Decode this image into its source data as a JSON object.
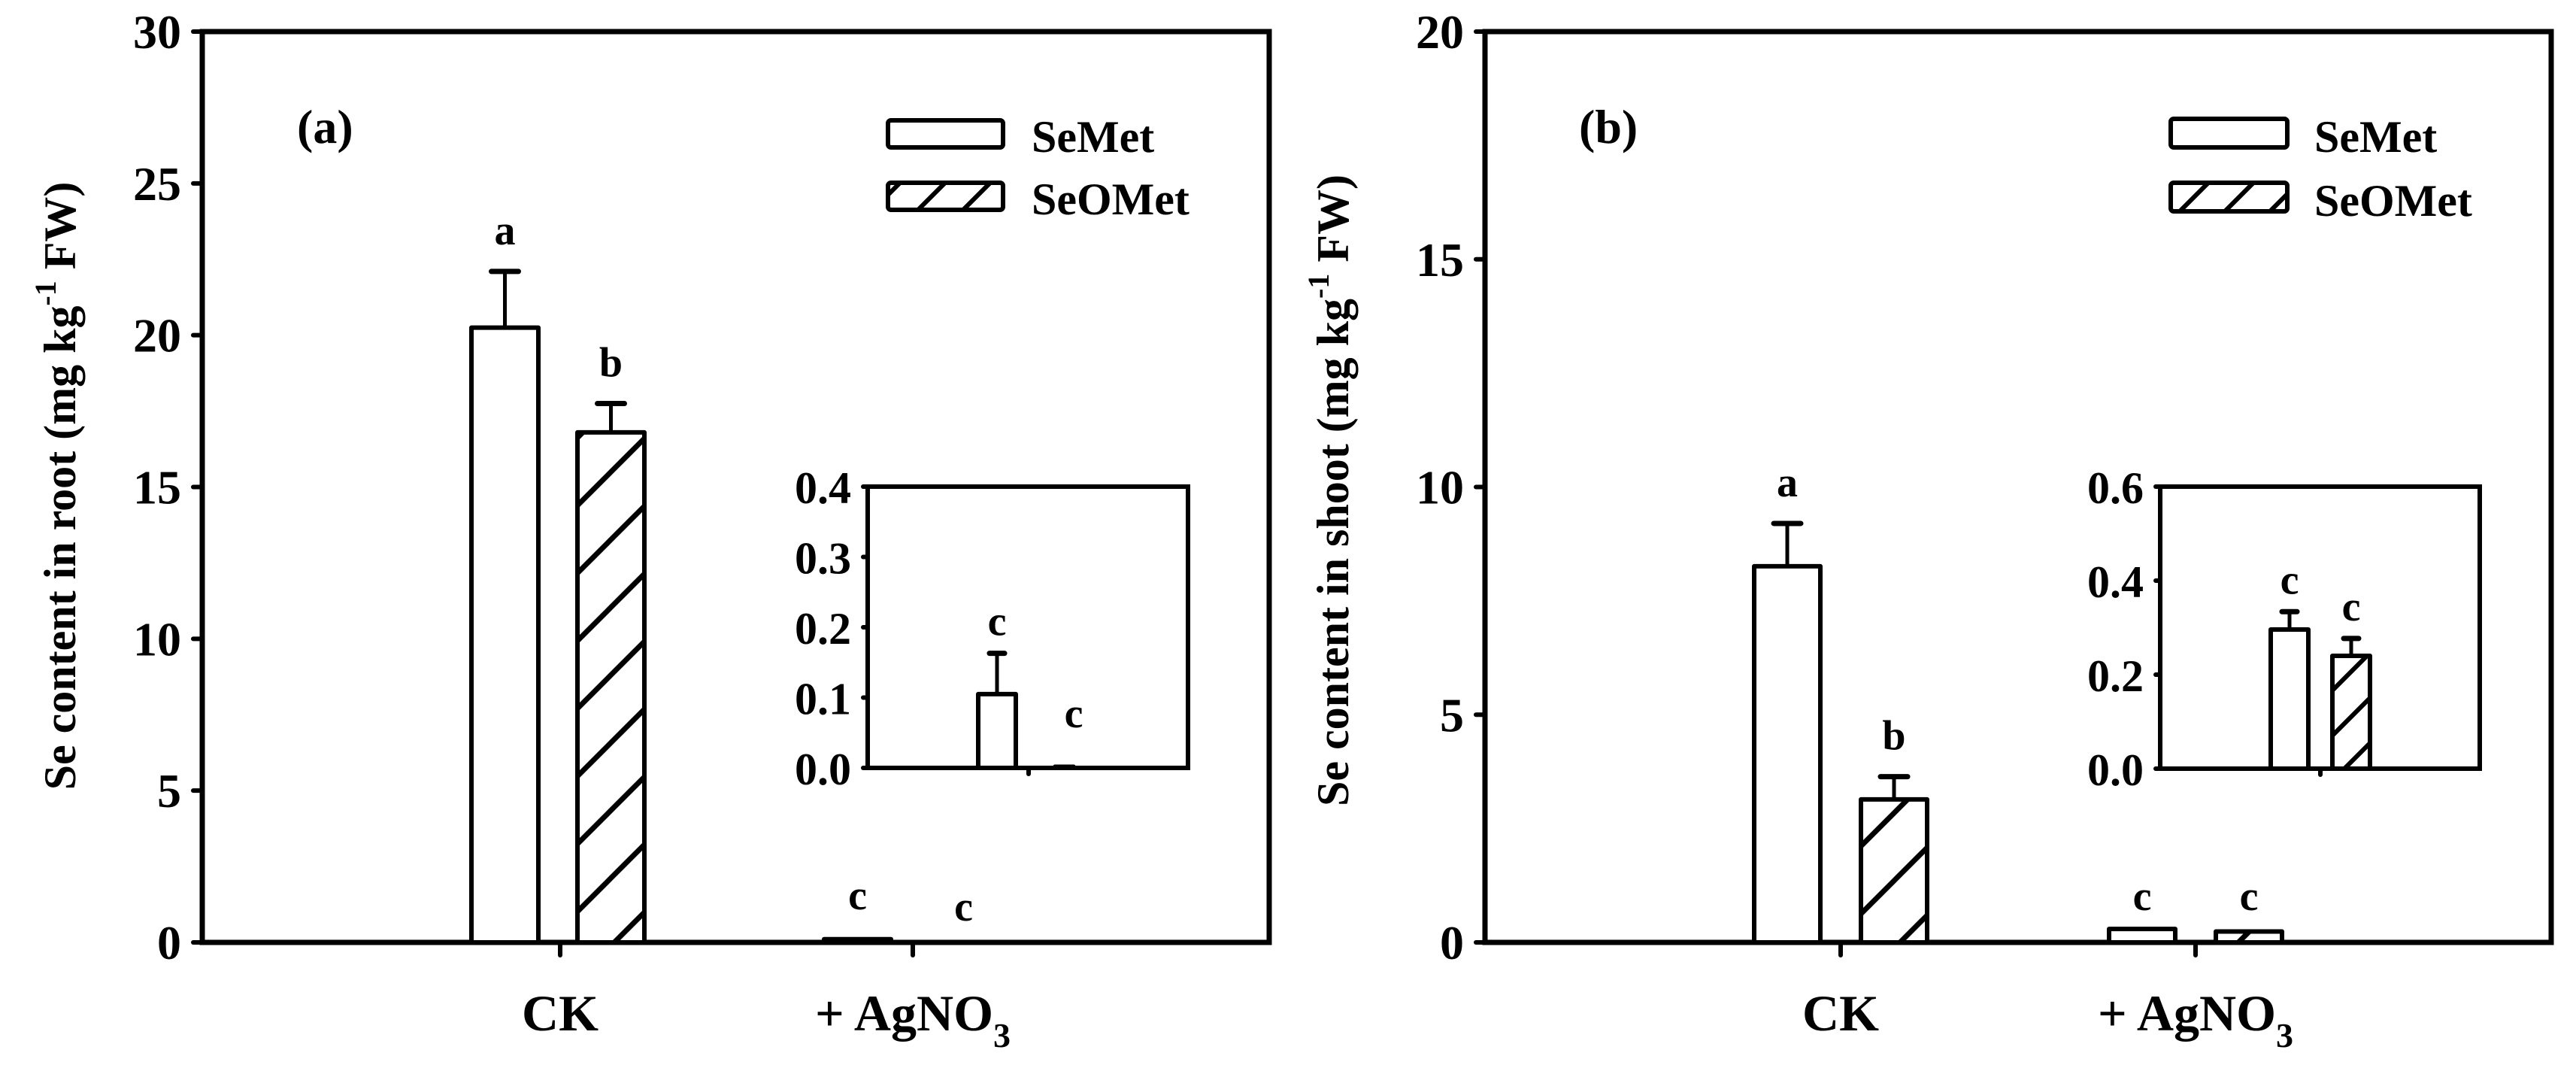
{
  "figure": {
    "panels": [
      {
        "id": "a",
        "label": "(a)"
      },
      {
        "id": "b",
        "label": "(b)"
      }
    ],
    "legend": {
      "items": [
        {
          "label": "SeMet",
          "pattern": "open"
        },
        {
          "label": "SeOMet",
          "pattern": "hatched"
        }
      ]
    },
    "colors": {
      "line": "#000000",
      "background": "#ffffff",
      "bar_fill": "#ffffff"
    }
  },
  "chart_data": [
    {
      "type": "bar",
      "panel_label": "(a)",
      "title": "",
      "xlabel": "",
      "ylabel": "Se content in root (mg kg-1 FW)",
      "ylabel_parts": {
        "main": "Se content in root (mg kg",
        "sup": "-1",
        "tail": " FW)"
      },
      "categories": [
        "CK",
        "+ AgNO3"
      ],
      "category_parts": [
        {
          "main": "CK",
          "sub": ""
        },
        {
          "main": "+ AgNO",
          "sub": "3"
        }
      ],
      "ylim": [
        0,
        30
      ],
      "yticks": [
        0,
        5,
        10,
        15,
        20,
        25,
        30
      ],
      "grid": false,
      "legend_position": "upper right",
      "series": [
        {
          "name": "SeMet",
          "pattern": "open",
          "values": [
            20.25,
            0.105
          ],
          "errors": [
            1.85,
            0.058
          ],
          "letters": [
            "a",
            "c"
          ]
        },
        {
          "name": "SeOMet",
          "pattern": "hatched",
          "values": [
            16.8,
            0.002
          ],
          "errors": [
            0.95,
            0.0
          ],
          "letters": [
            "b",
            "c"
          ]
        }
      ],
      "inset": {
        "category": "+ AgNO3",
        "ylim": [
          0,
          0.4
        ],
        "yticks": [
          "0.0",
          "0.1",
          "0.2",
          "0.3",
          "0.4"
        ],
        "series": [
          {
            "name": "SeMet",
            "value": 0.105,
            "error": 0.058,
            "letter": "c"
          },
          {
            "name": "SeOMet",
            "value": 0.002,
            "error": 0.0,
            "letter": "c"
          }
        ]
      }
    },
    {
      "type": "bar",
      "panel_label": "(b)",
      "title": "",
      "xlabel": "",
      "ylabel": "Se content in shoot (mg kg-1 FW)",
      "ylabel_parts": {
        "main": "Se content in shoot (mg kg",
        "sup": "-1",
        "tail": " FW)"
      },
      "categories": [
        "CK",
        "+ AgNO3"
      ],
      "category_parts": [
        {
          "main": "CK",
          "sub": ""
        },
        {
          "main": "+ AgNO",
          "sub": "3"
        }
      ],
      "ylim": [
        0,
        20
      ],
      "yticks": [
        0,
        5,
        10,
        15,
        20
      ],
      "grid": false,
      "legend_position": "upper right",
      "series": [
        {
          "name": "SeMet",
          "pattern": "open",
          "values": [
            8.26,
            0.296
          ],
          "errors": [
            0.94,
            0.038
          ],
          "letters": [
            "a",
            "c"
          ]
        },
        {
          "name": "SeOMet",
          "pattern": "hatched",
          "values": [
            3.14,
            0.24
          ],
          "errors": [
            0.5,
            0.037
          ],
          "letters": [
            "b",
            "c"
          ]
        }
      ],
      "inset": {
        "category": "+ AgNO3",
        "ylim": [
          0,
          0.6
        ],
        "yticks": [
          "0.0",
          "0.2",
          "0.4",
          "0.6"
        ],
        "series": [
          {
            "name": "SeMet",
            "value": 0.296,
            "error": 0.038,
            "letter": "c"
          },
          {
            "name": "SeOMet",
            "value": 0.24,
            "error": 0.037,
            "letter": "c"
          }
        ]
      }
    }
  ]
}
